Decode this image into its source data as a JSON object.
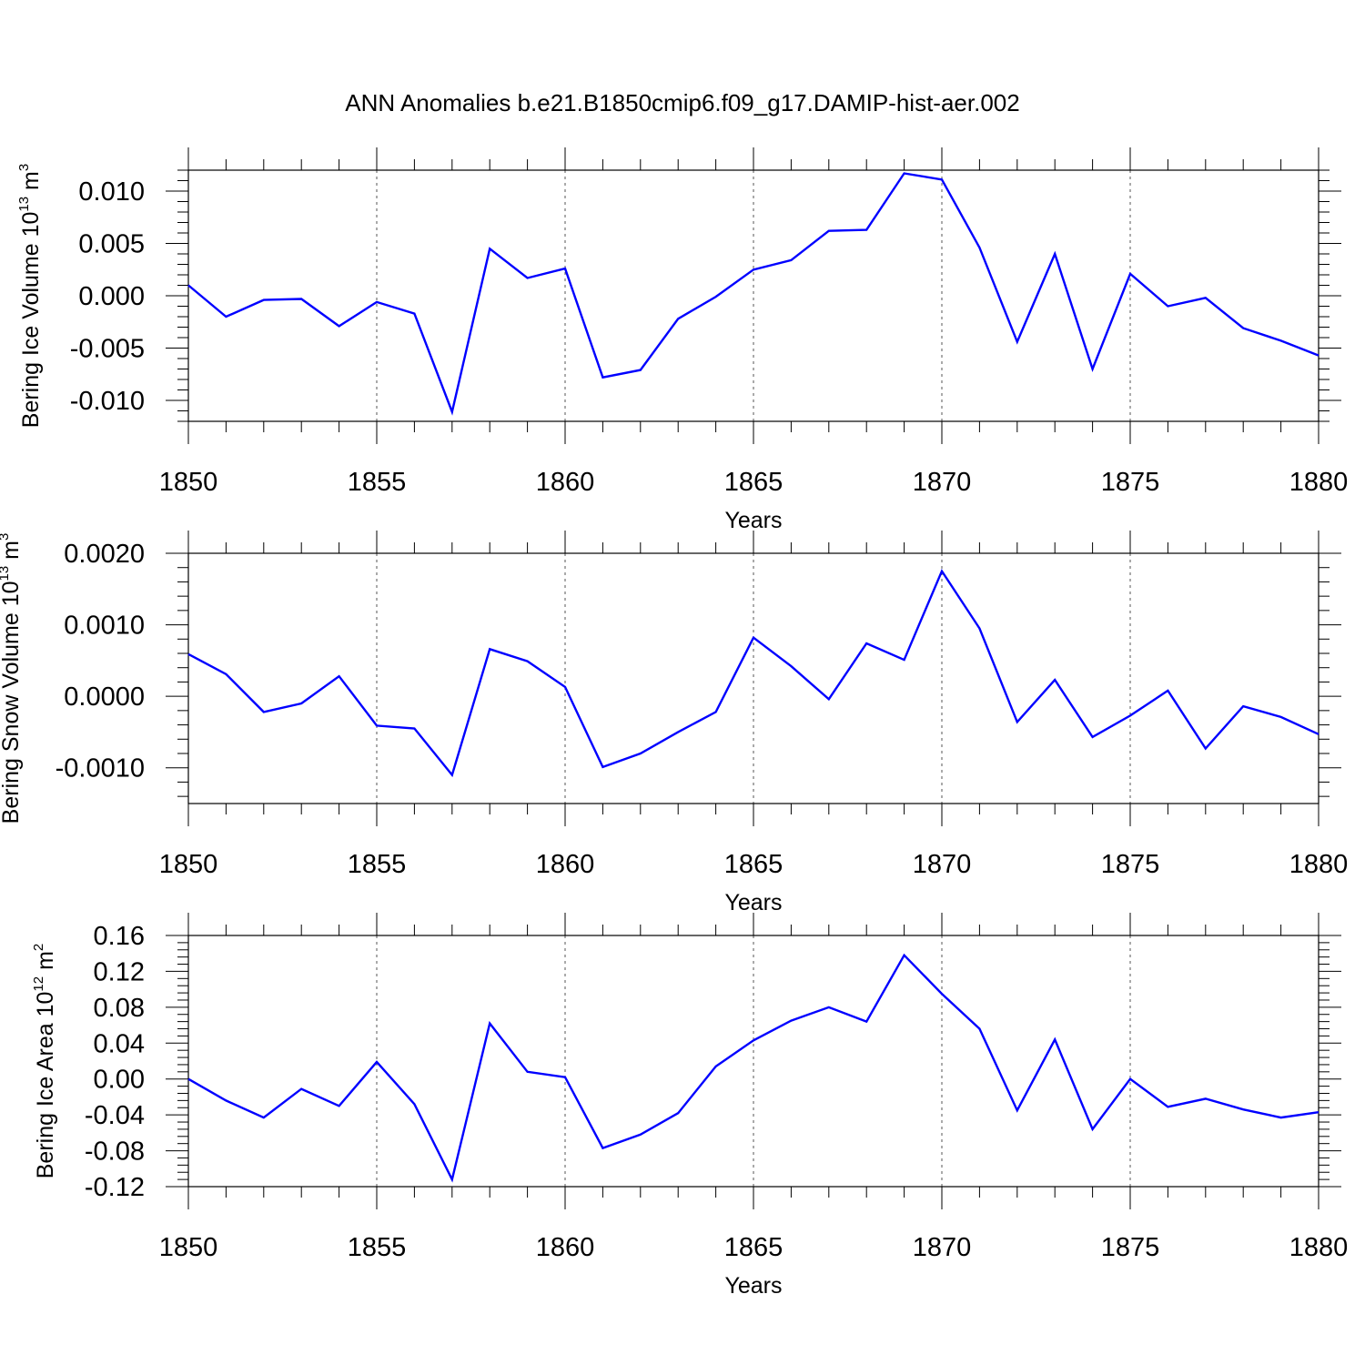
{
  "title": "ANN Anomalies b.e21.B1850cmip6.f09_g17.DAMIP-hist-aer.002",
  "line_color": "#0000ff",
  "chart_data": [
    {
      "type": "line",
      "xlabel": "Years",
      "ylabel": {
        "prefix": "Bering Ice Volume 10",
        "exp": "13",
        "unit": " m",
        "unit_exp": "3"
      },
      "xlim": [
        1850,
        1880
      ],
      "ylim": [
        -0.012,
        0.012
      ],
      "xticks": [
        1850,
        1855,
        1860,
        1865,
        1870,
        1875,
        1880
      ],
      "xtick_labels": [
        "1850",
        "1855",
        "1860",
        "1865",
        "1870",
        "1875",
        "1880"
      ],
      "yticks": [
        -0.01,
        -0.005,
        0,
        0.005,
        0.01
      ],
      "ytick_labels": [
        "-0.010",
        "-0.005",
        "0.000",
        "0.005",
        "0.010"
      ],
      "grid": "vertical dashed at major x ticks",
      "series": [
        {
          "x": [
            1850,
            1851,
            1852,
            1853,
            1854,
            1855,
            1856,
            1857,
            1858,
            1859,
            1860,
            1861,
            1862,
            1863,
            1864,
            1865,
            1866,
            1867,
            1868,
            1869,
            1870,
            1871,
            1872,
            1873,
            1874,
            1875,
            1876,
            1877,
            1878,
            1879,
            1880
          ],
          "values": [
            0.001,
            -0.002,
            -0.0004,
            -0.0003,
            -0.0029,
            -0.0006,
            -0.0017,
            -0.0111,
            0.0045,
            0.0017,
            0.0026,
            -0.0078,
            -0.0071,
            -0.0022,
            -0.0001,
            0.0025,
            0.0034,
            0.0062,
            0.0063,
            0.0117,
            0.0111,
            0.0046,
            -0.0044,
            0.004,
            -0.007,
            0.0021,
            -0.001,
            -0.0002,
            -0.0031,
            -0.0043,
            -0.0057
          ]
        }
      ]
    },
    {
      "type": "line",
      "xlabel": "Years",
      "ylabel": {
        "prefix": "Bering Snow Volume 10",
        "exp": "13",
        "unit": " m",
        "unit_exp": "3"
      },
      "xlim": [
        1850,
        1880
      ],
      "ylim": [
        -0.0015,
        0.002
      ],
      "xticks": [
        1850,
        1855,
        1860,
        1865,
        1870,
        1875,
        1880
      ],
      "xtick_labels": [
        "1850",
        "1855",
        "1860",
        "1865",
        "1870",
        "1875",
        "1880"
      ],
      "yticks": [
        -0.001,
        0,
        0.001,
        0.002
      ],
      "ytick_labels": [
        "-0.0010",
        "0.0000",
        "0.0010",
        "0.0020"
      ],
      "grid": "vertical dashed at major x ticks",
      "series": [
        {
          "x": [
            1850,
            1851,
            1852,
            1853,
            1854,
            1855,
            1856,
            1857,
            1858,
            1859,
            1860,
            1861,
            1862,
            1863,
            1864,
            1865,
            1866,
            1867,
            1868,
            1869,
            1870,
            1871,
            1872,
            1873,
            1874,
            1875,
            1876,
            1877,
            1878,
            1879,
            1880
          ],
          "values": [
            0.00059,
            0.00031,
            -0.00022,
            -0.0001,
            0.00028,
            -0.00041,
            -0.00045,
            -0.0011,
            0.00066,
            0.00049,
            0.00013,
            -0.00099,
            -0.0008,
            -0.0005,
            -0.00022,
            0.00082,
            0.00042,
            -4e-05,
            0.00074,
            0.00051,
            0.00175,
            0.00095,
            -0.00036,
            0.00023,
            -0.00057,
            -0.00027,
            8e-05,
            -0.00073,
            -0.00014,
            -0.00029,
            -0.00053
          ]
        }
      ]
    },
    {
      "type": "line",
      "xlabel": "Years",
      "ylabel": {
        "prefix": "Bering Ice Area 10",
        "exp": "12",
        "unit": " m",
        "unit_exp": "2"
      },
      "xlim": [
        1850,
        1880
      ],
      "ylim": [
        -0.12,
        0.16
      ],
      "xticks": [
        1850,
        1855,
        1860,
        1865,
        1870,
        1875,
        1880
      ],
      "xtick_labels": [
        "1850",
        "1855",
        "1860",
        "1865",
        "1870",
        "1875",
        "1880"
      ],
      "yticks": [
        -0.12,
        -0.08,
        -0.04,
        0,
        0.04,
        0.08,
        0.12,
        0.16
      ],
      "ytick_labels": [
        "-0.12",
        "-0.08",
        "-0.04",
        "0.00",
        "0.04",
        "0.08",
        "0.12",
        "0.16"
      ],
      "grid": "vertical dashed at major x ticks",
      "series": [
        {
          "x": [
            1850,
            1851,
            1852,
            1853,
            1854,
            1855,
            1856,
            1857,
            1858,
            1859,
            1860,
            1861,
            1862,
            1863,
            1864,
            1865,
            1866,
            1867,
            1868,
            1869,
            1870,
            1871,
            1872,
            1873,
            1874,
            1875,
            1876,
            1877,
            1878,
            1879,
            1880
          ],
          "values": [
            0.0,
            -0.024,
            -0.043,
            -0.011,
            -0.03,
            0.019,
            -0.028,
            -0.112,
            0.062,
            0.008,
            0.002,
            -0.077,
            -0.062,
            -0.038,
            0.014,
            0.043,
            0.065,
            0.08,
            0.064,
            0.138,
            0.095,
            0.056,
            -0.035,
            0.044,
            -0.056,
            0.0,
            -0.031,
            -0.022,
            -0.034,
            -0.043,
            -0.037
          ]
        }
      ]
    }
  ]
}
